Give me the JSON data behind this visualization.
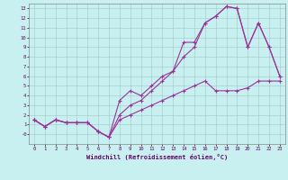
{
  "bg_color": "#c8f0f0",
  "grid_color": "#a0c8c8",
  "line_color": "#993399",
  "xlabel": "Windchill (Refroidissement éolien,°C)",
  "xlim": [
    -0.5,
    23.5
  ],
  "ylim": [
    -1.0,
    13.5
  ],
  "xticks": [
    0,
    1,
    2,
    3,
    4,
    5,
    6,
    7,
    8,
    9,
    10,
    11,
    12,
    13,
    14,
    15,
    16,
    17,
    18,
    19,
    20,
    21,
    22,
    23
  ],
  "yticks": [
    0,
    1,
    2,
    3,
    4,
    5,
    6,
    7,
    8,
    9,
    10,
    11,
    12,
    13
  ],
  "ytick_labels": [
    "-0",
    "1",
    "2",
    "3",
    "4",
    "5",
    "6",
    "7",
    "8",
    "9",
    "10",
    "11",
    "12",
    "13"
  ],
  "line1_x": [
    0,
    1,
    2,
    3,
    4,
    5,
    6,
    7,
    8,
    9,
    10,
    11,
    12,
    13,
    14,
    15,
    16,
    17,
    18,
    19,
    20,
    21,
    22,
    23
  ],
  "line1_y": [
    1.5,
    0.8,
    1.5,
    1.2,
    1.2,
    1.2,
    0.3,
    -0.3,
    3.5,
    4.5,
    4.0,
    5.0,
    6.0,
    6.5,
    9.5,
    9.5,
    11.5,
    12.2,
    13.2,
    13.0,
    9.0,
    11.5,
    9.0,
    6.0
  ],
  "line2_x": [
    0,
    1,
    2,
    3,
    4,
    5,
    6,
    7,
    8,
    9,
    10,
    11,
    12,
    13,
    14,
    15,
    16,
    17,
    18,
    19,
    20,
    21,
    22,
    23
  ],
  "line2_y": [
    1.5,
    0.8,
    1.5,
    1.2,
    1.2,
    1.2,
    0.3,
    -0.3,
    2.0,
    3.0,
    3.5,
    4.5,
    5.5,
    6.5,
    8.0,
    9.0,
    11.5,
    12.2,
    13.2,
    13.0,
    9.0,
    11.5,
    9.0,
    6.0
  ],
  "line3_x": [
    0,
    1,
    2,
    3,
    4,
    5,
    6,
    7,
    8,
    9,
    10,
    11,
    12,
    13,
    14,
    15,
    16,
    17,
    18,
    19,
    20,
    21,
    22,
    23
  ],
  "line3_y": [
    1.5,
    0.8,
    1.5,
    1.2,
    1.2,
    1.2,
    0.3,
    -0.3,
    1.5,
    2.0,
    2.5,
    3.0,
    3.5,
    4.0,
    4.5,
    5.0,
    5.5,
    4.5,
    4.5,
    4.5,
    4.8,
    5.5,
    5.5,
    5.5
  ]
}
